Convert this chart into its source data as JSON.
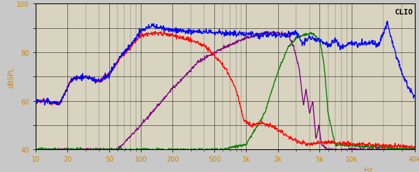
{
  "ylabel": "dBSPL",
  "clio_label": "CLIO",
  "xmin": 10,
  "xmax": 40000,
  "ymin": 40,
  "ymax": 100,
  "yticks": [
    40,
    50,
    60,
    70,
    80,
    90,
    100
  ],
  "ytick_labels": [
    "40",
    "",
    "60",
    "",
    "80",
    "",
    "100"
  ],
  "bg_color": "#c8c8c8",
  "plot_bg_color": "#d8d4c0",
  "grid_color": "#000000",
  "tick_label_color": "#cc8800",
  "colors": {
    "blue": "#0000ff",
    "red": "#ff0000",
    "green": "#008000",
    "purple": "#800080"
  },
  "figsize": [
    6.1,
    2.51
  ],
  "dpi": 100
}
